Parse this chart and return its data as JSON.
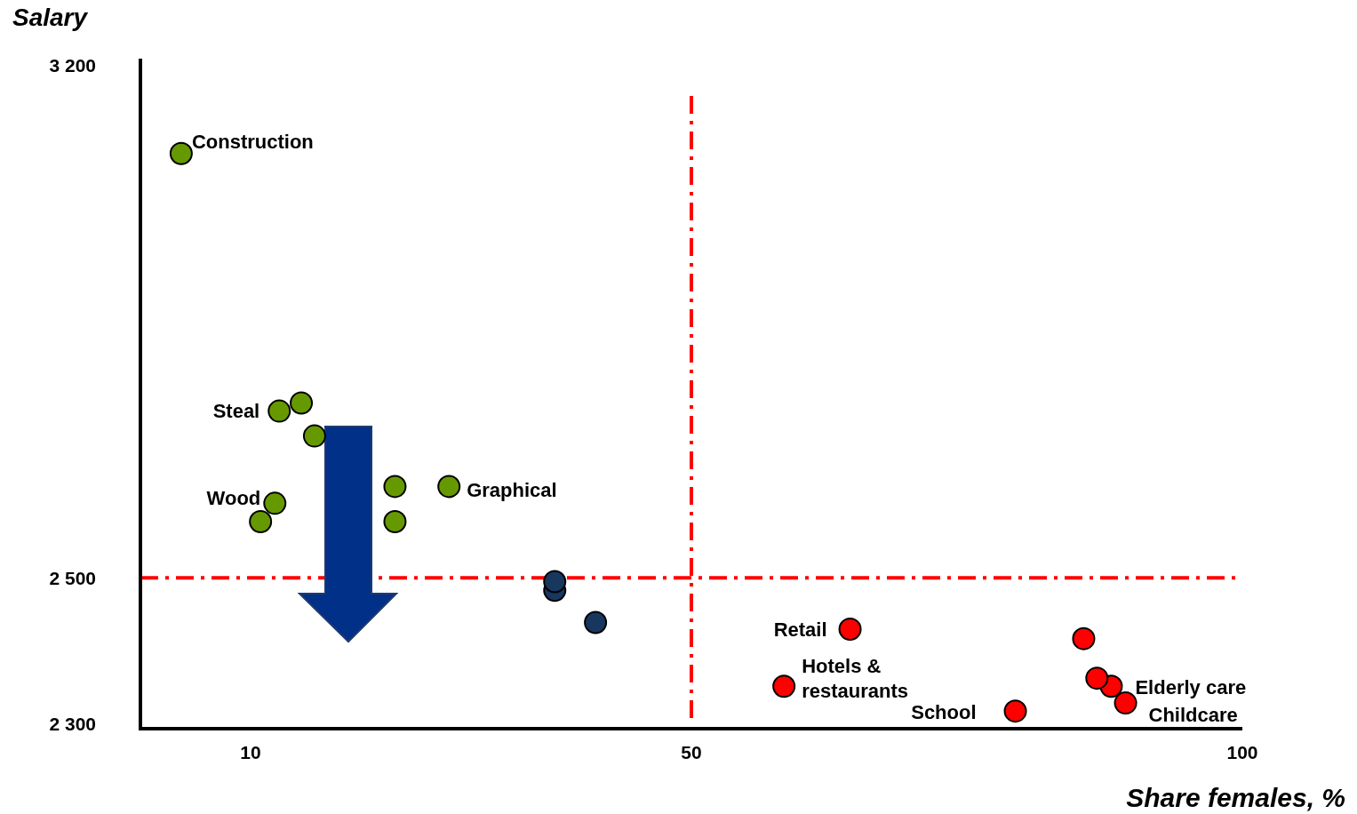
{
  "chart_data": {
    "type": "scatter",
    "xlabel": "Share females, %",
    "ylabel": "Salary",
    "xlim": [
      0,
      100
    ],
    "ylim": [
      2300,
      3200
    ],
    "xticks": [
      10,
      50,
      100
    ],
    "yticks": [
      2300,
      2500,
      3200
    ],
    "grid": false,
    "marker": "circle",
    "series": [
      {
        "color": "#669900",
        "x": [
          3.7,
          12.6,
          14.6,
          15.8,
          12.2,
          10.9,
          23.1,
          23.1,
          28.0
        ],
        "values": [
          3080,
          2728,
          2739,
          2694,
          2602,
          2577,
          2625,
          2577,
          2625
        ]
      },
      {
        "color": "#17375e",
        "x": [
          37.6,
          37.6,
          41.3
        ],
        "values": [
          2495,
          2483,
          2439
        ]
      },
      {
        "color": "#ff0000",
        "x": [
          64.4,
          85.6,
          58.4,
          86.8,
          88.1,
          89.4,
          79.4
        ],
        "values": [
          2430,
          2417,
          2352,
          2363,
          2352,
          2329,
          2318
        ]
      }
    ],
    "ref_lines": [
      {
        "axis": "x",
        "value": 50,
        "color": "#ff0000",
        "line_style": "dashdot"
      },
      {
        "axis": "y",
        "value": 2500,
        "color": "#ff0000",
        "line_style": "dashdot"
      }
    ],
    "annotations": [
      {
        "text": "Construction",
        "x": 3.7,
        "y": 3080
      },
      {
        "text": "Steal",
        "x": 12.6,
        "y": 2728
      },
      {
        "text": "Wood",
        "x": 12.2,
        "y": 2602
      },
      {
        "text": "Graphical",
        "x": 28.0,
        "y": 2625
      },
      {
        "text": "Retail",
        "x": 64.4,
        "y": 2430
      },
      {
        "text": "Hotels & restaurants",
        "x": 58.4,
        "y": 2352
      },
      {
        "text": "Elderly care",
        "x": 88.1,
        "y": 2352
      },
      {
        "text": "Childcare",
        "x": 89.4,
        "y": 2329
      },
      {
        "text": "School",
        "x": 79.4,
        "y": 2318
      }
    ]
  }
}
